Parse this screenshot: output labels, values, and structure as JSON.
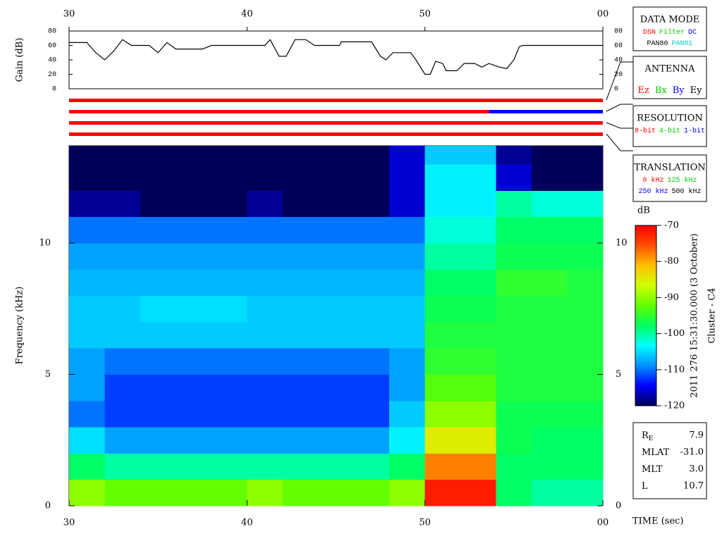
{
  "chart_data": [
    {
      "type": "line",
      "ylabel": "Gain (dB)",
      "x": [
        30,
        31,
        31.5,
        32,
        32.5,
        33,
        33.5,
        34.5,
        35,
        35.5,
        36,
        37.5,
        38,
        41,
        41.3,
        41.8,
        42.2,
        42.7,
        43.3,
        43.8,
        45.2,
        45.3,
        47,
        47.5,
        47.8,
        48.2,
        49.2,
        49.5,
        50,
        50.3,
        50.6,
        51,
        51.2,
        51.8,
        52.2,
        52.8,
        53.2,
        53.6,
        54.2,
        54.6,
        55,
        55.3,
        55.5,
        60
      ],
      "values": [
        64,
        64,
        50,
        40,
        52,
        68,
        60,
        60,
        50,
        64,
        55,
        55,
        60,
        60,
        68,
        45,
        45,
        68,
        68,
        60,
        60,
        65,
        65,
        45,
        40,
        50,
        50,
        40,
        20,
        20,
        38,
        35,
        25,
        25,
        35,
        35,
        30,
        35,
        30,
        28,
        40,
        58,
        60,
        60
      ],
      "color": "#000000",
      "xlim": [
        30,
        60
      ],
      "xticks": [
        30,
        40,
        50,
        {
          "value": 60,
          "label": "00"
        }
      ],
      "ylim": [
        0,
        80
      ],
      "yticks": [
        0,
        20,
        40,
        60,
        80
      ],
      "status_bars": [
        [
          {
            "x": [
              30,
              60
            ],
            "color": "#ff0000"
          }
        ],
        [
          {
            "x": [
              30,
              53.6
            ],
            "color": "#ff0000"
          },
          {
            "x": [
              53.6,
              60
            ],
            "color": "#0000ff"
          }
        ],
        [
          {
            "x": [
              30,
              60
            ],
            "color": "#ff0000"
          }
        ],
        [
          {
            "x": [
              30,
              60
            ],
            "color": "#ff0000"
          }
        ]
      ]
    },
    {
      "type": "heatmap",
      "ylabel": "Frequency (kHz)",
      "xlabel": "TIME (sec)",
      "x_edges": [
        30,
        32,
        34,
        36,
        38,
        40,
        42,
        44,
        46,
        48,
        50,
        52,
        54,
        56,
        58,
        60
      ],
      "y_edges": [
        0,
        1,
        2,
        3,
        4,
        5,
        6,
        7,
        8,
        9,
        10,
        11,
        12,
        13,
        13.7
      ],
      "values": [
        [
          -90,
          -92,
          -92,
          -92,
          -92,
          -90,
          -92,
          -92,
          -92,
          -90,
          -72,
          -72,
          -98,
          -100,
          -100
        ],
        [
          -98,
          -100,
          -100,
          -100,
          -100,
          -100,
          -100,
          -100,
          -100,
          -98,
          -78,
          -78,
          -98,
          -98,
          -98
        ],
        [
          -105,
          -108,
          -108,
          -108,
          -108,
          -108,
          -108,
          -108,
          -108,
          -104,
          -85,
          -85,
          -97,
          -98,
          -98
        ],
        [
          -110,
          -112,
          -112,
          -112,
          -112,
          -112,
          -112,
          -112,
          -112,
          -106,
          -90,
          -90,
          -97,
          -97,
          -97
        ],
        [
          -108,
          -112,
          -112,
          -112,
          -112,
          -112,
          -112,
          -112,
          -112,
          -108,
          -93,
          -93,
          -96,
          -96,
          -96
        ],
        [
          -108,
          -110,
          -110,
          -110,
          -110,
          -110,
          -110,
          -110,
          -110,
          -108,
          -95,
          -95,
          -96,
          -96,
          -96
        ],
        [
          -106,
          -106,
          -106,
          -106,
          -106,
          -106,
          -106,
          -106,
          -106,
          -106,
          -96,
          -96,
          -96,
          -96,
          -96
        ],
        [
          -106,
          -106,
          -105,
          -105,
          -105,
          -106,
          -106,
          -106,
          -106,
          -106,
          -97,
          -97,
          -96,
          -96,
          -96
        ],
        [
          -107,
          -107,
          -107,
          -107,
          -107,
          -107,
          -107,
          -107,
          -107,
          -107,
          -98,
          -98,
          -95,
          -95,
          -96
        ],
        [
          -108,
          -108,
          -108,
          -108,
          -108,
          -108,
          -108,
          -108,
          -108,
          -108,
          -100,
          -100,
          -97,
          -97,
          -97
        ],
        [
          -110,
          -110,
          -110,
          -110,
          -110,
          -110,
          -110,
          -110,
          -110,
          -110,
          -102,
          -102,
          -98,
          -98,
          -98
        ],
        [
          -118,
          -118,
          -120,
          -120,
          -120,
          -118,
          -120,
          -120,
          -120,
          -116,
          -104,
          -104,
          -100,
          -102,
          -102
        ],
        [
          -120,
          -120,
          -120,
          -120,
          -120,
          -120,
          -120,
          -120,
          -120,
          -116,
          -104,
          -104,
          -116,
          -120,
          -120
        ],
        [
          -120,
          -120,
          -120,
          -120,
          -120,
          -120,
          -120,
          -120,
          -120,
          -116,
          -106,
          -106,
          -118,
          -120,
          -120
        ]
      ],
      "xlim": [
        30,
        60
      ],
      "xticks": [
        30,
        40,
        50,
        {
          "value": 60,
          "label": "00"
        }
      ],
      "ylim": [
        0,
        13.7
      ],
      "yticks": [
        0,
        5,
        10
      ],
      "zlabel": "dB",
      "zlim": [
        -120,
        -70
      ],
      "zticks": [
        -70,
        -80,
        -90,
        -100,
        -110,
        -120
      ],
      "colormap": [
        "#00005a",
        "#0000ff",
        "#0090ff",
        "#00ffff",
        "#00ff60",
        "#60ff00",
        "#d0ff00",
        "#ffc000",
        "#ff5000",
        "#ff0000"
      ],
      "annotations": [
        "2011 276 15:31:30.000 (3 October)",
        "Cluster - C4"
      ]
    }
  ],
  "panels": [
    {
      "title": "DATA MODE",
      "rows": [
        [
          {
            "text": "DSN",
            "color": "#ff0000"
          },
          {
            "text": "Filter",
            "color": "#00d000"
          },
          {
            "text": "DC",
            "color": "#0000ff"
          }
        ],
        [
          {
            "text": "PAN80",
            "color": "#000000"
          },
          {
            "text": "PAN81",
            "color": "#00d0d0"
          }
        ]
      ]
    },
    {
      "title": "ANTENNA",
      "rows": [
        [
          {
            "text": "Ez",
            "color": "#ff0000"
          },
          {
            "text": "Bx",
            "color": "#00d000"
          },
          {
            "text": "By",
            "color": "#0000ff"
          },
          {
            "text": "Ey",
            "color": "#000000"
          }
        ]
      ]
    },
    {
      "title": "RESOLUTION",
      "rows": [
        [
          {
            "text": "8-bit",
            "color": "#ff0000"
          },
          {
            "text": "4-bit",
            "color": "#00d000"
          },
          {
            "text": "1-bit",
            "color": "#0000ff"
          }
        ]
      ]
    },
    {
      "title": "TRANSLATION",
      "rows": [
        [
          {
            "text": "0 kHz",
            "color": "#ff0000"
          },
          {
            "text": "125 kHz",
            "color": "#00d000"
          }
        ],
        [
          {
            "text": "250 kHz",
            "color": "#0000ff"
          },
          {
            "text": "500 kHz",
            "color": "#000000"
          }
        ]
      ]
    }
  ],
  "info": [
    {
      "label": "R",
      "sub": "E",
      "value": "7.9"
    },
    {
      "label": "MLAT",
      "value": "-31.0"
    },
    {
      "label": "MLT",
      "value": "3.0"
    },
    {
      "label": "L",
      "value": "10.7"
    }
  ]
}
